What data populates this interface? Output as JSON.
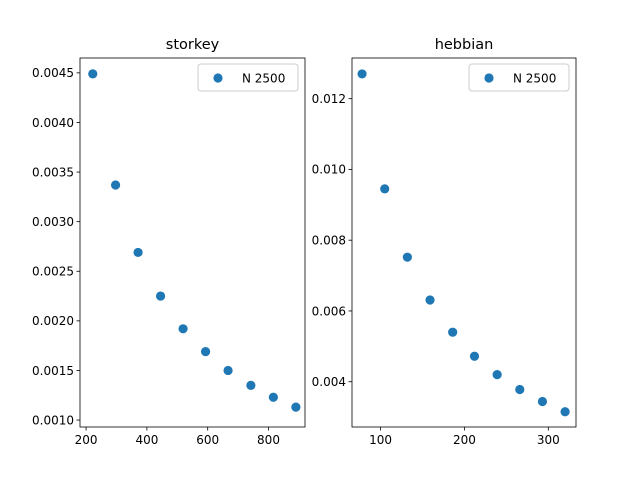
{
  "chart_data": [
    {
      "type": "scatter",
      "title": "storkey",
      "xlabel": "",
      "ylabel": "",
      "xlim": [
        180,
        920
      ],
      "ylim": [
        0.00093,
        0.00465
      ],
      "xticks": [
        200,
        400,
        600,
        800
      ],
      "xtick_labels": [
        "200",
        "400",
        "600",
        "800"
      ],
      "yticks": [
        0.001,
        0.0015,
        0.002,
        0.0025,
        0.003,
        0.0035,
        0.004,
        0.0045
      ],
      "ytick_labels": [
        "0.0010",
        "0.0015",
        "0.0020",
        "0.0025",
        "0.0030",
        "0.0035",
        "0.0040",
        "0.0045"
      ],
      "legend": {
        "placement": "top-right"
      },
      "series": [
        {
          "name": "N 2500",
          "color": "#1f77b4",
          "x": [
            222,
            297,
            371,
            445,
            519,
            593,
            667,
            742,
            816,
            890
          ],
          "y": [
            0.00449,
            0.00337,
            0.00269,
            0.00225,
            0.00192,
            0.00169,
            0.0015,
            0.00135,
            0.00123,
            0.00113
          ]
        }
      ]
    },
    {
      "type": "scatter",
      "title": "hebbian",
      "xlabel": "",
      "ylabel": "",
      "xlim": [
        66,
        333
      ],
      "ylim": [
        0.00272,
        0.01315
      ],
      "xticks": [
        100,
        200,
        300
      ],
      "xtick_labels": [
        "100",
        "200",
        "300"
      ],
      "yticks": [
        0.004,
        0.006,
        0.008,
        0.01,
        0.012
      ],
      "ytick_labels": [
        "0.004",
        "0.006",
        "0.008",
        "0.010",
        "0.012"
      ],
      "legend": {
        "placement": "top-right"
      },
      "series": [
        {
          "name": "N 2500",
          "color": "#1f77b4",
          "x": [
            78,
            105,
            132,
            159,
            186,
            212,
            239,
            266,
            293,
            320
          ],
          "y": [
            0.0127,
            0.00945,
            0.00752,
            0.00631,
            0.0054,
            0.00472,
            0.0042,
            0.00378,
            0.00344,
            0.00315
          ]
        }
      ]
    }
  ]
}
